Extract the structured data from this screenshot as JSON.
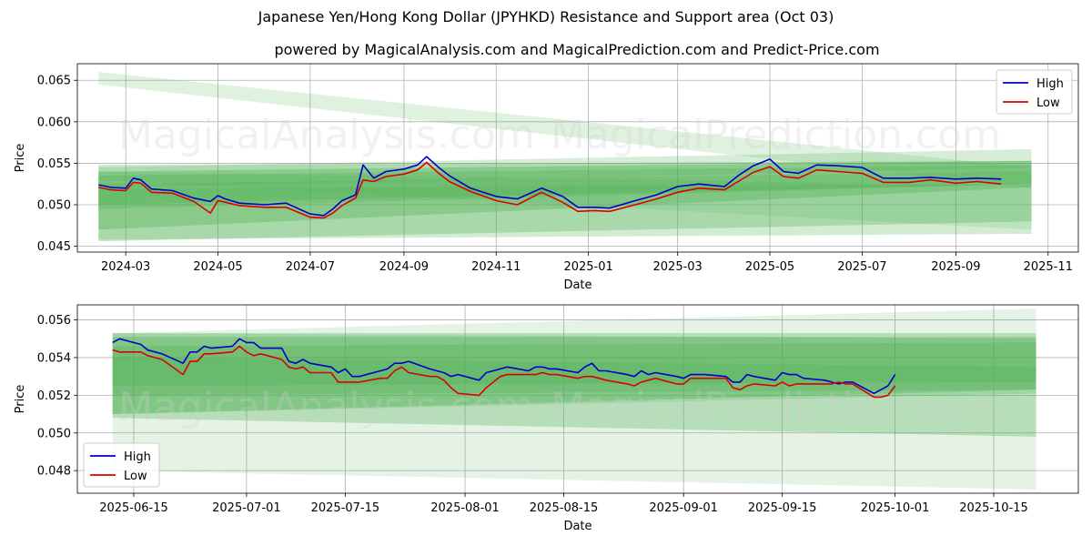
{
  "title": "Japanese Yen/Hong Kong Dollar (JPYHKD) Resistance and Support area (Oct 03)",
  "subtitle": "powered by MagicalAnalysis.com and MagicalPrediction.com and Predict-Price.com",
  "watermarks": [
    "MagicalAnalysis.com",
    "MagicalPrediction.com"
  ],
  "colors": {
    "high": "#0000cc",
    "low": "#dd0000",
    "band": "#4caf50",
    "grid": "#b0b0b0"
  },
  "chart_data": [
    {
      "type": "line",
      "xlabel": "Date",
      "ylabel": "Price",
      "legend": "top-right",
      "grid": true,
      "xlim": [
        "2024-01-29",
        "2025-11-21"
      ],
      "ylim": [
        0.0443,
        0.067
      ],
      "xticks": [
        "2024-03",
        "2024-05",
        "2024-07",
        "2024-09",
        "2024-11",
        "2025-01",
        "2025-03",
        "2025-05",
        "2025-07",
        "2025-09",
        "2025-11"
      ],
      "yticks": [
        "0.045",
        "0.050",
        "0.055",
        "0.060",
        "0.065"
      ],
      "series": [
        {
          "name": "High",
          "x": [
            "2024-02-12",
            "2024-02-20",
            "2024-03-01",
            "2024-03-06",
            "2024-03-11",
            "2024-03-18",
            "2024-04-01",
            "2024-04-15",
            "2024-04-26",
            "2024-05-01",
            "2024-05-06",
            "2024-05-15",
            "2024-06-01",
            "2024-06-15",
            "2024-07-01",
            "2024-07-10",
            "2024-07-16",
            "2024-07-22",
            "2024-07-31",
            "2024-08-05",
            "2024-08-12",
            "2024-08-20",
            "2024-09-01",
            "2024-09-10",
            "2024-09-16",
            "2024-09-24",
            "2024-10-01",
            "2024-10-15",
            "2024-11-01",
            "2024-11-15",
            "2024-12-01",
            "2024-12-15",
            "2024-12-25",
            "2025-01-05",
            "2025-01-15",
            "2025-02-01",
            "2025-02-15",
            "2025-03-01",
            "2025-03-15",
            "2025-04-01",
            "2025-04-10",
            "2025-04-20",
            "2025-05-01",
            "2025-05-10",
            "2025-05-20",
            "2025-06-01",
            "2025-06-15",
            "2025-07-01",
            "2025-07-15",
            "2025-08-01",
            "2025-08-15",
            "2025-09-01",
            "2025-09-15",
            "2025-10-01"
          ],
          "values": [
            0.0524,
            0.0521,
            0.052,
            0.0532,
            0.053,
            0.0519,
            0.0517,
            0.0508,
            0.0504,
            0.0511,
            0.0507,
            0.0502,
            0.05,
            0.0502,
            0.0489,
            0.0487,
            0.0495,
            0.0505,
            0.0512,
            0.0548,
            0.0532,
            0.054,
            0.0543,
            0.0548,
            0.0558,
            0.0545,
            0.0535,
            0.052,
            0.051,
            0.0507,
            0.052,
            0.051,
            0.0497,
            0.0497,
            0.0496,
            0.0505,
            0.0512,
            0.0522,
            0.0525,
            0.0522,
            0.0535,
            0.0547,
            0.0555,
            0.054,
            0.0538,
            0.0548,
            0.0547,
            0.0545,
            0.0532,
            0.0532,
            0.0533,
            0.0531,
            0.0532,
            0.0531
          ]
        },
        {
          "name": "Low",
          "x": [
            "2024-02-12",
            "2024-02-20",
            "2024-03-01",
            "2024-03-06",
            "2024-03-11",
            "2024-03-18",
            "2024-04-01",
            "2024-04-15",
            "2024-04-26",
            "2024-05-01",
            "2024-05-06",
            "2024-05-15",
            "2024-06-01",
            "2024-06-15",
            "2024-07-01",
            "2024-07-10",
            "2024-07-16",
            "2024-07-22",
            "2024-07-31",
            "2024-08-05",
            "2024-08-12",
            "2024-08-20",
            "2024-09-01",
            "2024-09-10",
            "2024-09-16",
            "2024-09-24",
            "2024-10-01",
            "2024-10-15",
            "2024-11-01",
            "2024-11-15",
            "2024-12-01",
            "2024-12-15",
            "2024-12-25",
            "2025-01-05",
            "2025-01-15",
            "2025-02-01",
            "2025-02-15",
            "2025-03-01",
            "2025-03-15",
            "2025-04-01",
            "2025-04-10",
            "2025-04-20",
            "2025-05-01",
            "2025-05-10",
            "2025-05-20",
            "2025-06-01",
            "2025-06-15",
            "2025-07-01",
            "2025-07-15",
            "2025-08-01",
            "2025-08-15",
            "2025-09-01",
            "2025-09-15",
            "2025-10-01"
          ],
          "values": [
            0.0521,
            0.0518,
            0.0517,
            0.0527,
            0.0526,
            0.0515,
            0.0514,
            0.0504,
            0.049,
            0.0505,
            0.0503,
            0.0499,
            0.0497,
            0.0497,
            0.0485,
            0.0484,
            0.049,
            0.0499,
            0.0508,
            0.053,
            0.0528,
            0.0534,
            0.0537,
            0.0542,
            0.0551,
            0.0538,
            0.0528,
            0.0516,
            0.0505,
            0.05,
            0.0515,
            0.0503,
            0.0492,
            0.0493,
            0.0492,
            0.05,
            0.0507,
            0.0515,
            0.052,
            0.0518,
            0.0528,
            0.0539,
            0.0546,
            0.0534,
            0.0532,
            0.0542,
            0.054,
            0.0538,
            0.0527,
            0.0527,
            0.053,
            0.0526,
            0.0528,
            0.0525
          ]
        }
      ]
    },
    {
      "type": "line",
      "xlabel": "Date",
      "ylabel": "Price",
      "legend": "bottom-left",
      "grid": true,
      "xlim": [
        "2025-06-07",
        "2025-10-27"
      ],
      "ylim": [
        0.0468,
        0.0568
      ],
      "xticks": [
        "2025-06-15",
        "2025-07-01",
        "2025-07-15",
        "2025-08-01",
        "2025-08-15",
        "2025-09-01",
        "2025-09-15",
        "2025-10-01",
        "2025-10-15"
      ],
      "yticks": [
        "0.048",
        "0.050",
        "0.052",
        "0.054",
        "0.056"
      ],
      "series": [
        {
          "name": "High",
          "x": [
            "2025-06-12",
            "2025-06-13",
            "2025-06-16",
            "2025-06-17",
            "2025-06-19",
            "2025-06-22",
            "2025-06-23",
            "2025-06-24",
            "2025-06-25",
            "2025-06-26",
            "2025-06-29",
            "2025-06-30",
            "2025-07-01",
            "2025-07-02",
            "2025-07-03",
            "2025-07-06",
            "2025-07-07",
            "2025-07-08",
            "2025-07-09",
            "2025-07-10",
            "2025-07-13",
            "2025-07-14",
            "2025-07-15",
            "2025-07-16",
            "2025-07-17",
            "2025-07-20",
            "2025-07-21",
            "2025-07-22",
            "2025-07-23",
            "2025-07-24",
            "2025-07-27",
            "2025-07-28",
            "2025-07-29",
            "2025-07-30",
            "2025-07-31",
            "2025-08-03",
            "2025-08-04",
            "2025-08-05",
            "2025-08-06",
            "2025-08-07",
            "2025-08-10",
            "2025-08-11",
            "2025-08-12",
            "2025-08-13",
            "2025-08-14",
            "2025-08-17",
            "2025-08-18",
            "2025-08-19",
            "2025-08-20",
            "2025-08-21",
            "2025-08-24",
            "2025-08-25",
            "2025-08-26",
            "2025-08-27",
            "2025-08-28",
            "2025-08-31",
            "2025-09-01",
            "2025-09-02",
            "2025-09-03",
            "2025-09-04",
            "2025-09-07",
            "2025-09-08",
            "2025-09-09",
            "2025-09-10",
            "2025-09-11",
            "2025-09-14",
            "2025-09-15",
            "2025-09-16",
            "2025-09-17",
            "2025-09-18",
            "2025-09-21",
            "2025-09-22",
            "2025-09-23",
            "2025-09-24",
            "2025-09-25",
            "2025-09-28",
            "2025-09-29",
            "2025-09-30",
            "2025-10-01"
          ],
          "values": [
            0.0548,
            0.055,
            0.0547,
            0.0544,
            0.0542,
            0.0537,
            0.0543,
            0.0543,
            0.0546,
            0.0545,
            0.0546,
            0.055,
            0.0548,
            0.0548,
            0.0545,
            0.0545,
            0.0538,
            0.0537,
            0.0539,
            0.0537,
            0.0535,
            0.0532,
            0.0534,
            0.053,
            0.053,
            0.0533,
            0.0534,
            0.0537,
            0.0537,
            0.0538,
            0.0534,
            0.0533,
            0.0532,
            0.053,
            0.0531,
            0.0528,
            0.0532,
            0.0533,
            0.0534,
            0.0535,
            0.0533,
            0.0535,
            0.0535,
            0.0534,
            0.0534,
            0.0532,
            0.0535,
            0.0537,
            0.0533,
            0.0533,
            0.0531,
            0.053,
            0.0533,
            0.0531,
            0.0532,
            0.053,
            0.0529,
            0.0531,
            0.0531,
            0.0531,
            0.053,
            0.0527,
            0.0527,
            0.0531,
            0.053,
            0.0528,
            0.0532,
            0.0531,
            0.0531,
            0.0529,
            0.0528,
            0.0527,
            0.0526,
            0.0527,
            0.0527,
            0.0521,
            0.0523,
            0.0525,
            0.0531
          ]
        },
        {
          "name": "Low",
          "x": [
            "2025-06-12",
            "2025-06-13",
            "2025-06-16",
            "2025-06-17",
            "2025-06-19",
            "2025-06-22",
            "2025-06-23",
            "2025-06-24",
            "2025-06-25",
            "2025-06-26",
            "2025-06-29",
            "2025-06-30",
            "2025-07-01",
            "2025-07-02",
            "2025-07-03",
            "2025-07-06",
            "2025-07-07",
            "2025-07-08",
            "2025-07-09",
            "2025-07-10",
            "2025-07-13",
            "2025-07-14",
            "2025-07-15",
            "2025-07-16",
            "2025-07-17",
            "2025-07-20",
            "2025-07-21",
            "2025-07-22",
            "2025-07-23",
            "2025-07-24",
            "2025-07-27",
            "2025-07-28",
            "2025-07-29",
            "2025-07-30",
            "2025-07-31",
            "2025-08-03",
            "2025-08-04",
            "2025-08-05",
            "2025-08-06",
            "2025-08-07",
            "2025-08-10",
            "2025-08-11",
            "2025-08-12",
            "2025-08-13",
            "2025-08-14",
            "2025-08-17",
            "2025-08-18",
            "2025-08-19",
            "2025-08-20",
            "2025-08-21",
            "2025-08-24",
            "2025-08-25",
            "2025-08-26",
            "2025-08-27",
            "2025-08-28",
            "2025-08-31",
            "2025-09-01",
            "2025-09-02",
            "2025-09-03",
            "2025-09-04",
            "2025-09-07",
            "2025-09-08",
            "2025-09-09",
            "2025-09-10",
            "2025-09-11",
            "2025-09-14",
            "2025-09-15",
            "2025-09-16",
            "2025-09-17",
            "2025-09-18",
            "2025-09-21",
            "2025-09-22",
            "2025-09-23",
            "2025-09-24",
            "2025-09-25",
            "2025-09-28",
            "2025-09-29",
            "2025-09-30",
            "2025-10-01"
          ],
          "values": [
            0.0544,
            0.0543,
            0.0543,
            0.0541,
            0.0539,
            0.0531,
            0.0538,
            0.0538,
            0.0542,
            0.0542,
            0.0543,
            0.0546,
            0.0543,
            0.0541,
            0.0542,
            0.0539,
            0.0535,
            0.0534,
            0.0535,
            0.0532,
            0.0532,
            0.0527,
            0.0527,
            0.0527,
            0.0527,
            0.0529,
            0.0529,
            0.0533,
            0.0535,
            0.0532,
            0.053,
            0.053,
            0.0528,
            0.0524,
            0.0521,
            0.052,
            0.0524,
            0.0527,
            0.053,
            0.0531,
            0.0531,
            0.0531,
            0.0532,
            0.0531,
            0.0531,
            0.0529,
            0.053,
            0.053,
            0.0529,
            0.0528,
            0.0526,
            0.0525,
            0.0527,
            0.0528,
            0.0529,
            0.0526,
            0.0526,
            0.0529,
            0.0529,
            0.0529,
            0.0529,
            0.0524,
            0.0523,
            0.0525,
            0.0526,
            0.0525,
            0.0527,
            0.0525,
            0.0526,
            0.0526,
            0.0526,
            0.0526,
            0.0527,
            0.0526,
            0.0526,
            0.0519,
            0.0519,
            0.052,
            0.0525
          ]
        }
      ]
    }
  ]
}
